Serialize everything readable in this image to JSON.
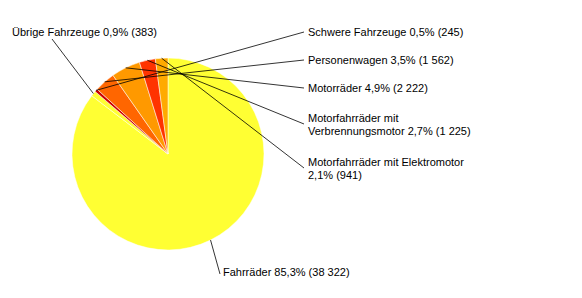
{
  "chart_data": {
    "type": "pie",
    "categories": [
      "Fahrräder 85,3% (38 322)",
      "Übrige Fahrzeuge 0,9% (383)",
      "Schwere Fahrzeuge 0,5% (245)",
      "Personenwagen 3,5% (1 562)",
      "Motorräder 4,9% (2 222)",
      "Motorfahrräder mit\nVerbrennungsmotor 2,7% (1 225)",
      "Motorfahrräder mit Elektromotor\n2,1% (941)"
    ],
    "values": [
      85.3,
      0.9,
      0.5,
      3.5,
      4.9,
      2.7,
      2.1
    ],
    "colors": [
      "#ffff33",
      "#ffff33",
      "#cc0000",
      "#ff6600",
      "#ff9900",
      "#ff3300",
      "#ffaa00"
    ]
  }
}
